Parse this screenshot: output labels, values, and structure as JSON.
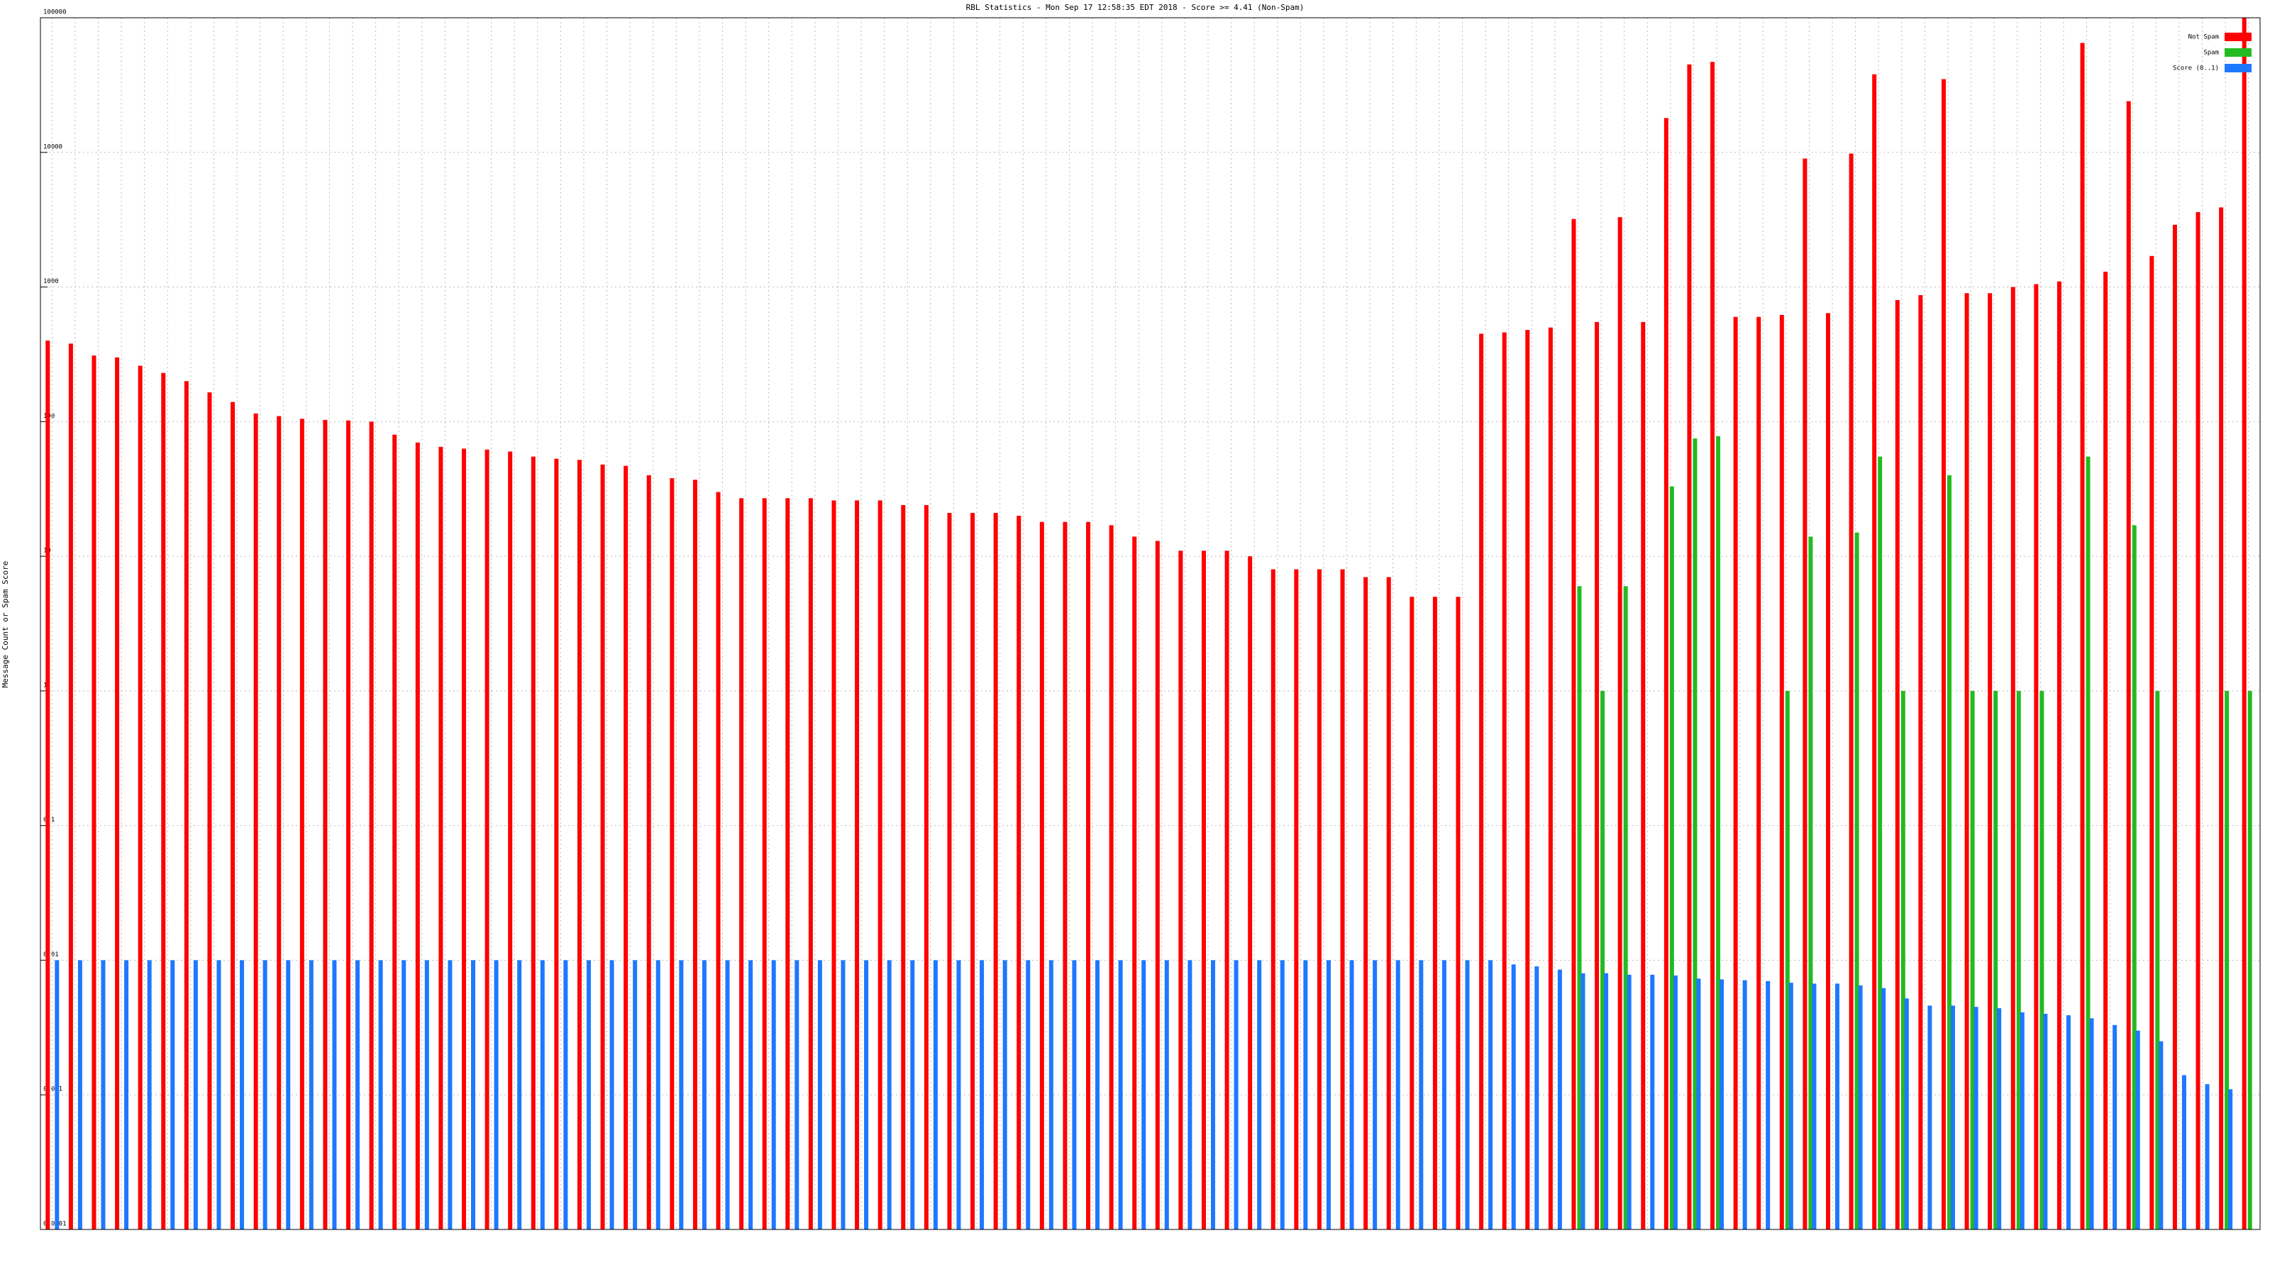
{
  "chart_data": {
    "type": "bar",
    "title": "RBL Statistics - Mon Sep 17 12:58:35 EDT 2018 - Score >= 4.41 (Non-Spam)",
    "y_label": "Message Count or Spam Score",
    "log_scale": true,
    "grid": true,
    "legend": "top-right",
    "ylim": [
      0.0001,
      100000
    ],
    "yticks": [
      0.0001,
      0.001,
      0.01,
      0.1,
      1,
      10,
      100,
      1000,
      10000,
      100000
    ],
    "categories": [
      null,
      null,
      null,
      null,
      null,
      null,
      null,
      null,
      null,
      null,
      null,
      null,
      null,
      null,
      null,
      null,
      null,
      null,
      null,
      null,
      null,
      null,
      null,
      null,
      null,
      null,
      null,
      null,
      null,
      null,
      null,
      null,
      null,
      null,
      null,
      null,
      null,
      null,
      null,
      null,
      null,
      null,
      null,
      null,
      null,
      null,
      null,
      null,
      null,
      null,
      null,
      null,
      null,
      null,
      null,
      null,
      null,
      null,
      null,
      null,
      null,
      null,
      null,
      null,
      null,
      null,
      null,
      null,
      null,
      null,
      null,
      null,
      null,
      null,
      null,
      null,
      null,
      null,
      null,
      null,
      null,
      null,
      null,
      null,
      null,
      null,
      null,
      null,
      null,
      null,
      null,
      null,
      null,
      null,
      null,
      null
    ],
    "series": [
      {
        "name": "Not Spam",
        "color": "#ff0000",
        "values": [
          400,
          380,
          310,
          300,
          260,
          230,
          200,
          165,
          140,
          115,
          110,
          105,
          103,
          102,
          100,
          80,
          70,
          65,
          63,
          62,
          60,
          55,
          53,
          52,
          48,
          47,
          40,
          38,
          37,
          30,
          27,
          27,
          27,
          27,
          26,
          26,
          26,
          24,
          24,
          21,
          21,
          21,
          20,
          18,
          18,
          18,
          17,
          14,
          13,
          11,
          11,
          11,
          10,
          8,
          8,
          8,
          8,
          7,
          7,
          5,
          5,
          5,
          450,
          460,
          480,
          500,
          3200,
          550,
          3300,
          550,
          18000,
          45000,
          47000,
          600,
          600,
          620,
          9000,
          640,
          9800,
          38000,
          800,
          870,
          35000,
          900,
          900,
          1000,
          1050,
          1100,
          65000,
          1300,
          24000,
          1700,
          2900,
          3600,
          3900,
          100000
        ]
      },
      {
        "name": "Spam",
        "color": "#22bb22",
        "values": [
          null,
          null,
          null,
          null,
          null,
          null,
          null,
          null,
          null,
          null,
          null,
          null,
          null,
          null,
          null,
          null,
          null,
          null,
          null,
          null,
          null,
          null,
          null,
          null,
          null,
          null,
          null,
          null,
          null,
          null,
          null,
          null,
          null,
          null,
          null,
          null,
          null,
          null,
          null,
          null,
          null,
          null,
          null,
          null,
          null,
          null,
          null,
          null,
          null,
          null,
          null,
          null,
          null,
          null,
          null,
          null,
          null,
          null,
          null,
          null,
          null,
          null,
          null,
          null,
          null,
          null,
          6,
          1,
          6,
          null,
          33,
          75,
          78,
          null,
          null,
          1,
          14,
          null,
          15,
          55,
          1,
          null,
          40,
          1,
          1,
          1,
          1,
          null,
          55,
          null,
          17,
          1,
          null,
          null,
          1,
          1
        ]
      },
      {
        "name": "Score (0..1)",
        "color": "#1e78ff",
        "values": [
          0.01,
          0.01,
          0.01,
          0.01,
          0.01,
          0.01,
          0.01,
          0.01,
          0.01,
          0.01,
          0.01,
          0.01,
          0.01,
          0.01,
          0.01,
          0.01,
          0.01,
          0.01,
          0.01,
          0.01,
          0.01,
          0.01,
          0.01,
          0.01,
          0.01,
          0.01,
          0.01,
          0.01,
          0.01,
          0.01,
          0.01,
          0.01,
          0.01,
          0.01,
          0.01,
          0.01,
          0.01,
          0.01,
          0.01,
          0.01,
          0.01,
          0.01,
          0.01,
          0.01,
          0.01,
          0.01,
          0.01,
          0.01,
          0.01,
          0.01,
          0.01,
          0.01,
          0.01,
          0.01,
          0.01,
          0.01,
          0.01,
          0.01,
          0.01,
          0.01,
          0.01,
          0.01,
          0.01,
          0.0093,
          0.009,
          0.0085,
          0.008,
          0.008,
          0.0078,
          0.0078,
          0.0077,
          0.0073,
          0.0072,
          0.0071,
          0.007,
          0.0068,
          0.0067,
          0.0067,
          0.0065,
          0.0062,
          0.0052,
          0.0046,
          0.0046,
          0.0045,
          0.0044,
          0.0041,
          0.004,
          0.0039,
          0.0037,
          0.0033,
          0.003,
          0.0025,
          0.0014,
          0.0012,
          0.0011,
          null
        ]
      }
    ]
  }
}
